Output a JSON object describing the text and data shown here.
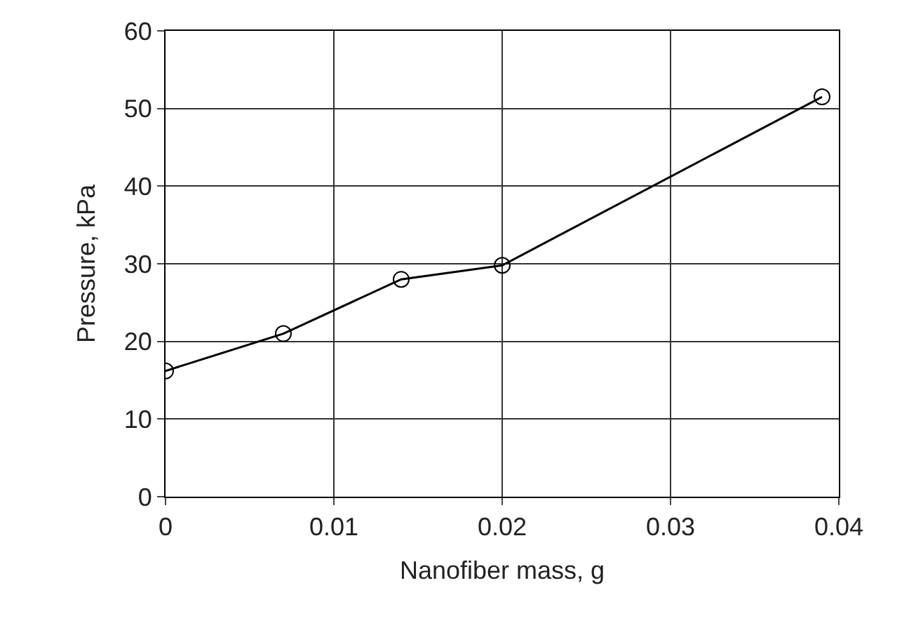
{
  "chart_data": {
    "type": "line",
    "xlabel": "Nanofiber mass, g",
    "ylabel": "Pressure, kPa",
    "x": [
      0,
      0.007,
      0.014,
      0.02,
      0.039
    ],
    "series": [
      {
        "color": "#000000",
        "values": [
          16.2,
          21,
          28,
          29.8,
          51.5
        ]
      }
    ],
    "xlim": [
      0,
      0.04
    ],
    "xticks": [
      0,
      0.01,
      0.02,
      0.03,
      0.04
    ],
    "ylim": [
      0,
      60
    ],
    "yticks": [
      0,
      10,
      20,
      30,
      40,
      50,
      60
    ],
    "grid": true,
    "marker": "circle",
    "line_style": "solid",
    "legend": false
  }
}
